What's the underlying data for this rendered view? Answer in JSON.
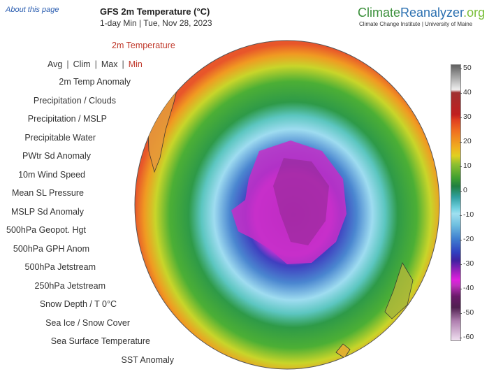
{
  "header": {
    "about_link": "About this page",
    "title": "GFS 2m Temperature (°C)",
    "subtitle": "1-day Min | Tue, Nov 28, 2023"
  },
  "logo": {
    "part1": "Climate",
    "part2": "Reanalyzer",
    "part3": ".org",
    "tagline": "Climate Change Institute | University of Maine"
  },
  "sidebar": {
    "header": "2m Temperature",
    "stat_options": [
      "Avg",
      "Clim",
      "Max",
      "Min"
    ],
    "selected_stat": "Min",
    "separator": "|",
    "items": [
      "2m Temp Anomaly",
      "Precipitation / Clouds",
      "Precipitation / MSLP",
      "Precipitable Water",
      "PWtr Sd Anomaly",
      "10m Wind Speed",
      "Mean SL Pressure",
      "MSLP Sd Anomaly",
      "500hPa Geopot. Hgt",
      "500hPa GPH Anom",
      "500hPa Jetstream",
      "250hPa Jetstream",
      "Snow Depth / T 0°C",
      "Sea Ice / Snow Cover",
      "Sea Surface Temperature",
      "SST Anomaly"
    ]
  },
  "colorbar": {
    "ticks": [
      "50",
      "40",
      "30",
      "20",
      "10",
      "0",
      "-10",
      "-20",
      "-30",
      "-40",
      "-50",
      "-60"
    ]
  },
  "colors": {
    "link": "#2a5db0",
    "selected": "#c0392b"
  }
}
